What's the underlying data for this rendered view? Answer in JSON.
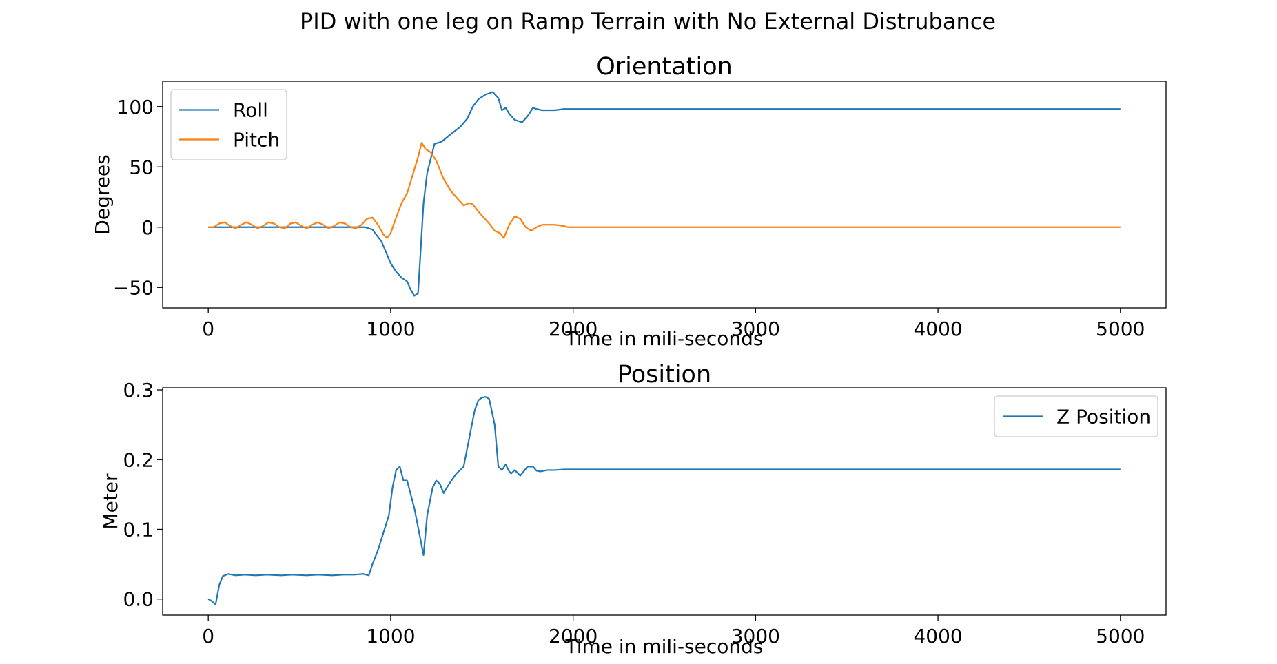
{
  "figure": {
    "suptitle": "PID with one leg on Ramp Terrain with No External Distrubance"
  },
  "chart_data": [
    {
      "type": "line",
      "title": "Orientation",
      "xlabel": "Time in mili-seconds",
      "ylabel": "Degrees",
      "xlim": [
        -250,
        5250
      ],
      "ylim": [
        -67,
        121
      ],
      "xticks": [
        0,
        1000,
        2000,
        3000,
        4000,
        5000
      ],
      "xtick_labels": [
        "0",
        "1000",
        "2000",
        "3000",
        "4000",
        "5000"
      ],
      "yticks": [
        -50,
        0,
        50,
        100
      ],
      "ytick_labels": [
        "−50",
        "0",
        "50",
        "100"
      ],
      "grid": false,
      "legend": "upper-left",
      "series": [
        {
          "name": "Roll",
          "color": "#1f77b4",
          "x": [
            0,
            100,
            200,
            300,
            400,
            500,
            600,
            700,
            800,
            860,
            900,
            950,
            1000,
            1030,
            1060,
            1090,
            1110,
            1130,
            1150,
            1160,
            1180,
            1200,
            1240,
            1280,
            1320,
            1380,
            1420,
            1450,
            1480,
            1520,
            1560,
            1590,
            1610,
            1630,
            1650,
            1680,
            1720,
            1750,
            1780,
            1800,
            1830,
            1860,
            1900,
            1950,
            2000,
            3000,
            4000,
            5000
          ],
          "y": [
            0,
            0,
            0,
            0,
            0,
            0,
            0,
            0,
            0,
            0,
            -2,
            -12,
            -30,
            -37,
            -42,
            -45,
            -52,
            -57,
            -55,
            -30,
            20,
            45,
            69,
            71,
            76,
            83,
            90,
            100,
            106,
            110,
            112,
            107,
            97,
            99,
            94,
            89,
            87,
            92,
            99,
            98,
            97,
            97,
            97,
            98,
            98,
            98,
            98,
            98
          ]
        },
        {
          "name": "Pitch",
          "color": "#ff7f0e",
          "x": [
            0,
            30,
            60,
            90,
            120,
            150,
            180,
            210,
            240,
            270,
            300,
            330,
            360,
            390,
            420,
            450,
            480,
            510,
            540,
            570,
            600,
            630,
            660,
            690,
            720,
            750,
            780,
            810,
            840,
            870,
            900,
            930,
            960,
            980,
            1000,
            1030,
            1060,
            1090,
            1120,
            1150,
            1170,
            1190,
            1220,
            1250,
            1290,
            1330,
            1370,
            1400,
            1430,
            1450,
            1480,
            1510,
            1540,
            1570,
            1600,
            1620,
            1650,
            1680,
            1710,
            1740,
            1770,
            1800,
            1830,
            1860,
            1900,
            1950,
            1970,
            2000,
            3000,
            4000,
            5000
          ],
          "y": [
            0,
            0,
            3,
            4,
            1,
            -1,
            2,
            4,
            2,
            -1,
            1,
            4,
            3,
            0,
            -1,
            3,
            4,
            1,
            -1,
            2,
            4,
            2,
            -1,
            1,
            4,
            3,
            0,
            -1,
            2,
            7,
            8,
            2,
            -6,
            -9,
            -5,
            8,
            20,
            28,
            43,
            58,
            70,
            65,
            62,
            55,
            40,
            30,
            23,
            18,
            20,
            19,
            13,
            8,
            3,
            -3,
            -5,
            -9,
            2,
            9,
            7,
            0,
            -3,
            0,
            2,
            2,
            2,
            1,
            0,
            0,
            0,
            0,
            0
          ]
        }
      ]
    },
    {
      "type": "line",
      "title": "Position",
      "xlabel": "Time in mili-seconds",
      "ylabel": "Meter",
      "xlim": [
        -250,
        5250
      ],
      "ylim": [
        -0.023,
        0.303
      ],
      "xticks": [
        0,
        1000,
        2000,
        3000,
        4000,
        5000
      ],
      "xtick_labels": [
        "0",
        "1000",
        "2000",
        "3000",
        "4000",
        "5000"
      ],
      "yticks": [
        0.0,
        0.1,
        0.2,
        0.3
      ],
      "ytick_labels": [
        "0.0",
        "0.1",
        "0.2",
        "0.3"
      ],
      "grid": false,
      "legend": "upper-right",
      "series": [
        {
          "name": "Z Position",
          "color": "#1f77b4",
          "x": [
            0,
            20,
            40,
            60,
            80,
            110,
            150,
            200,
            260,
            320,
            400,
            460,
            540,
            600,
            680,
            740,
            800,
            850,
            880,
            900,
            930,
            960,
            990,
            1010,
            1030,
            1050,
            1070,
            1090,
            1110,
            1130,
            1160,
            1180,
            1200,
            1230,
            1250,
            1270,
            1290,
            1320,
            1360,
            1400,
            1430,
            1460,
            1480,
            1500,
            1520,
            1540,
            1570,
            1590,
            1610,
            1630,
            1650,
            1660,
            1680,
            1710,
            1750,
            1780,
            1800,
            1820,
            1840,
            1860,
            1900,
            1950,
            2000,
            3000,
            4000,
            5000
          ],
          "y": [
            0.0,
            -0.003,
            -0.008,
            0.02,
            0.033,
            0.036,
            0.034,
            0.035,
            0.034,
            0.035,
            0.034,
            0.035,
            0.034,
            0.035,
            0.034,
            0.035,
            0.035,
            0.036,
            0.034,
            0.05,
            0.07,
            0.095,
            0.12,
            0.16,
            0.185,
            0.19,
            0.17,
            0.17,
            0.15,
            0.13,
            0.09,
            0.063,
            0.12,
            0.16,
            0.17,
            0.165,
            0.152,
            0.165,
            0.18,
            0.19,
            0.23,
            0.27,
            0.285,
            0.289,
            0.29,
            0.287,
            0.25,
            0.19,
            0.185,
            0.193,
            0.183,
            0.18,
            0.185,
            0.177,
            0.19,
            0.19,
            0.184,
            0.183,
            0.184,
            0.185,
            0.185,
            0.186,
            0.186,
            0.186,
            0.186,
            0.186
          ]
        }
      ]
    }
  ]
}
